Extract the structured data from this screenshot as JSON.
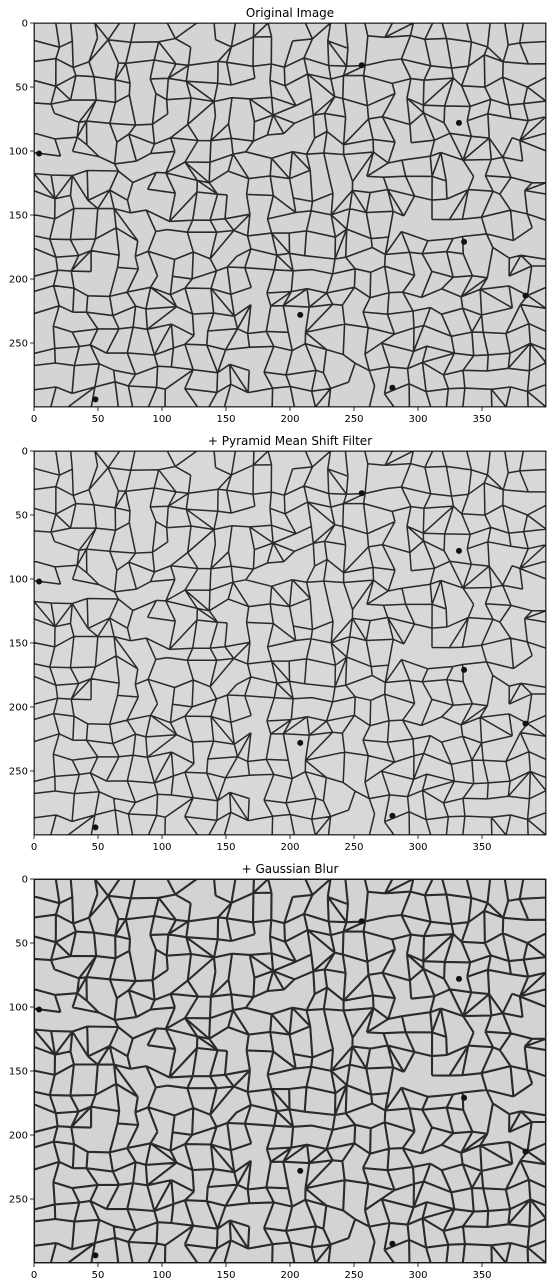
{
  "chart_data": [
    {
      "type": "heatmap",
      "title": "Original Image",
      "xlabel": "",
      "ylabel": "",
      "xlim": [
        0,
        400
      ],
      "ylim": [
        300,
        0
      ],
      "x_ticks": [
        0,
        50,
        100,
        150,
        200,
        250,
        300,
        350
      ],
      "y_ticks": [
        0,
        50,
        100,
        150,
        200,
        250
      ],
      "colormap": "gray",
      "image_content": "micrograph of metal grain boundaries",
      "grid": false
    },
    {
      "type": "heatmap",
      "title": "+ Pyramid Mean Shift Filter",
      "xlabel": "",
      "ylabel": "",
      "xlim": [
        0,
        400
      ],
      "ylim": [
        300,
        0
      ],
      "x_ticks": [
        0,
        50,
        100,
        150,
        200,
        250,
        300,
        350
      ],
      "y_ticks": [
        0,
        50,
        100,
        150,
        200,
        250
      ],
      "colormap": "gray",
      "image_content": "micrograph of metal grain boundaries",
      "grid": false
    },
    {
      "type": "heatmap",
      "title": "+ Gaussian Blur",
      "xlabel": "",
      "ylabel": "",
      "xlim": [
        0,
        400
      ],
      "ylim": [
        300,
        0
      ],
      "x_ticks": [
        0,
        50,
        100,
        150,
        200,
        250,
        300,
        350
      ],
      "y_ticks": [
        0,
        50,
        100,
        150,
        200,
        250
      ],
      "colormap": "gray",
      "image_content": "micrograph of metal grain boundaries",
      "grid": false
    }
  ]
}
